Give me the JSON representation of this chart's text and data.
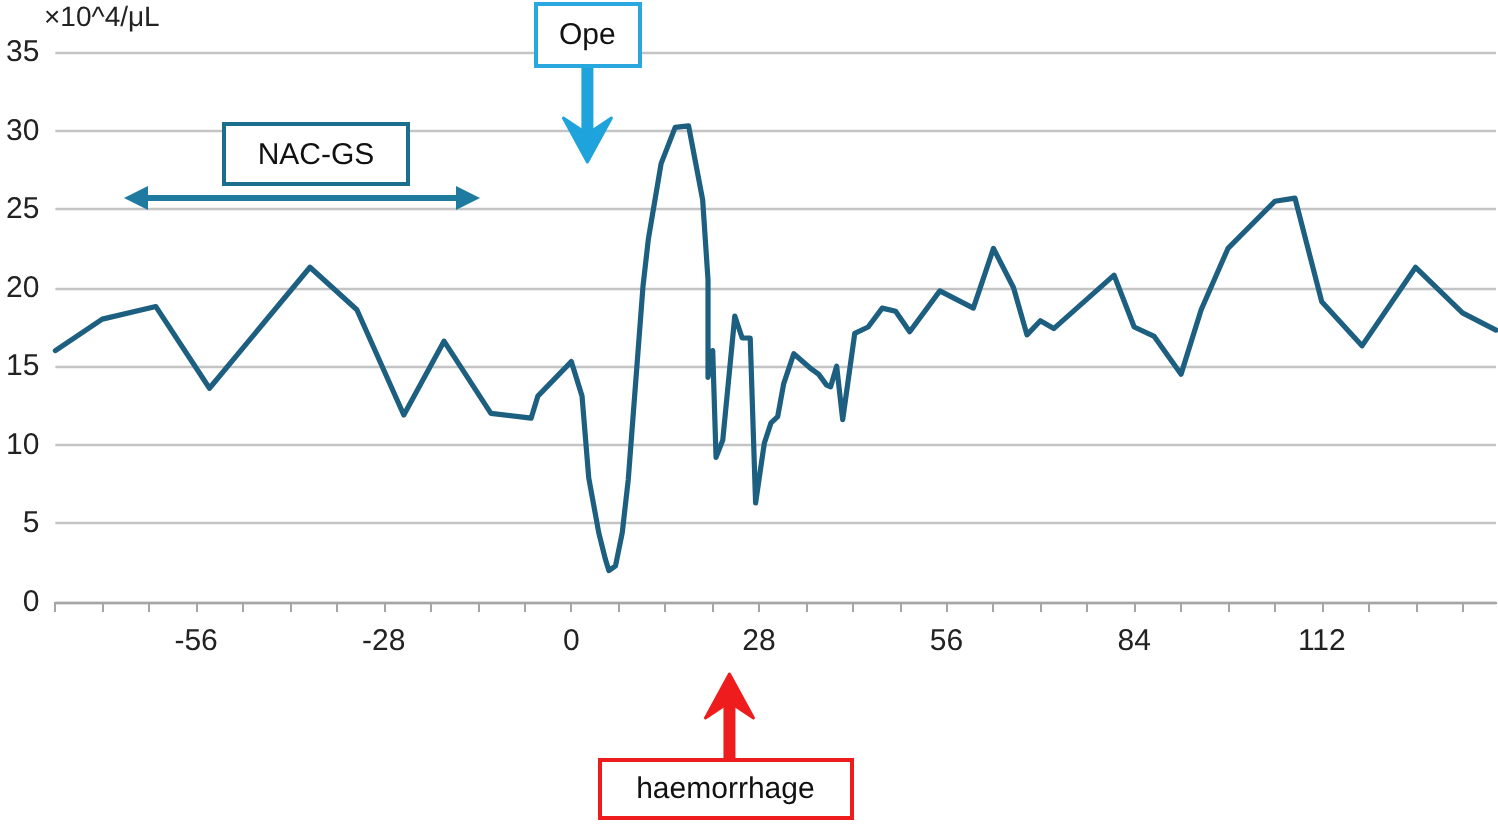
{
  "chart_data": {
    "type": "line",
    "ylabel": "×10^4/μL",
    "annotations": [
      {
        "text": "Ope",
        "x": 2.4
      },
      "NAC-GS",
      {
        "text": "haemorrhage",
        "x": 23.6
      }
    ],
    "x": [
      -77,
      -70,
      -62,
      -54,
      -39,
      -32,
      -25,
      -19,
      -12,
      -6,
      -5,
      0,
      1.6,
      2.6,
      4.1,
      5.1,
      5.6,
      6.6,
      7.6,
      8.5,
      10.7,
      11.5,
      13.4,
      15.5,
      17.5,
      19.6,
      20.4,
      20.4,
      21.1,
      21.6,
      22.6,
      24.4,
      25.5,
      26.7,
      27.5,
      28.8,
      29.8,
      30.8,
      31.7,
      33.2,
      35.9,
      36.9,
      38.1,
      38.7,
      39.6,
      40.5,
      42.3,
      44.3,
      46.4,
      48.4,
      50.5,
      55,
      60,
      63,
      66,
      68,
      70,
      72,
      81,
      84,
      87,
      91,
      94,
      98,
      105,
      108,
      112,
      118,
      126,
      133,
      138
    ],
    "values": [
      16.0,
      18.0,
      18.8,
      13.6,
      21.3,
      18.6,
      11.9,
      16.6,
      12.0,
      11.7,
      13.1,
      15.3,
      13.1,
      7.9,
      4.4,
      2.7,
      2.0,
      2.3,
      4.4,
      7.8,
      20.1,
      23.1,
      27.9,
      30.2,
      30.3,
      25.6,
      20.5,
      14.3,
      16.0,
      9.2,
      10.3,
      18.2,
      16.8,
      16.8,
      6.3,
      10.1,
      11.4,
      11.8,
      13.9,
      15.8,
      14.8,
      14.5,
      13.8,
      13.7,
      15.0,
      11.6,
      17.1,
      17.5,
      18.7,
      18.5,
      17.2,
      19.8,
      18.7,
      22.5,
      20.0,
      17.0,
      17.9,
      17.4,
      20.8,
      17.5,
      16.9,
      14.5,
      18.6,
      22.5,
      25.5,
      25.7,
      19.1,
      16.3,
      21.3,
      18.4,
      17.3
    ],
    "color": "#1d5f80",
    "xlim": [
      -77,
      138
    ],
    "xticks": [
      {
        "value": -77,
        "label": null
      },
      {
        "value": -70,
        "label": null
      },
      {
        "value": -63,
        "label": null
      },
      -56,
      {
        "value": -49,
        "label": null
      },
      {
        "value": -42,
        "label": null
      },
      {
        "value": -35,
        "label": null
      },
      -28,
      {
        "value": -21,
        "label": null
      },
      {
        "value": -14,
        "label": null
      },
      {
        "value": -7,
        "label": null
      },
      0,
      {
        "value": 7,
        "label": null
      },
      {
        "value": 14,
        "label": null
      },
      {
        "value": 21,
        "label": null
      },
      28,
      {
        "value": 35,
        "label": null
      },
      {
        "value": 42,
        "label": null
      },
      {
        "value": 49,
        "label": null
      },
      56,
      {
        "value": 63,
        "label": null
      },
      {
        "value": 70,
        "label": null
      },
      {
        "value": 77,
        "label": null
      },
      84,
      {
        "value": 91,
        "label": null
      },
      {
        "value": 98,
        "label": null
      },
      {
        "value": 105,
        "label": null
      },
      112,
      {
        "value": 119,
        "label": null
      },
      {
        "value": 126,
        "label": null
      },
      {
        "value": 133,
        "label": null
      }
    ],
    "ylim": [
      0,
      35
    ],
    "yticks": [
      0,
      5,
      10,
      15,
      20,
      25,
      30,
      35
    ],
    "grid": "y",
    "marker": "none",
    "line_style": "solid"
  }
}
